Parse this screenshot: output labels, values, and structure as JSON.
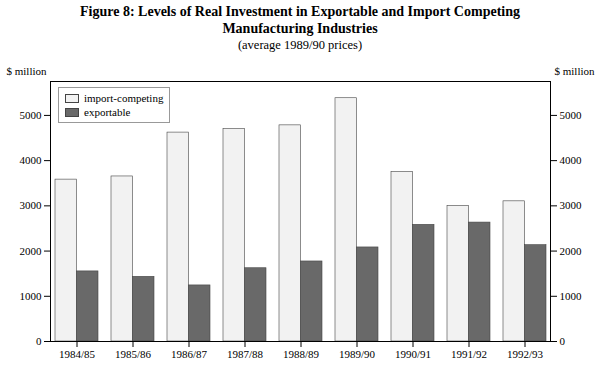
{
  "chart_data": {
    "type": "bar",
    "title": "Figure 8: Levels of Real Investment in Exportable and Import Competing\nManufacturing Industries",
    "subtitle": "(average 1989/90 prices)",
    "categories": [
      "1984/85",
      "1985/86",
      "1986/87",
      "1987/88",
      "1988/89",
      "1989/90",
      "1990/91",
      "1991/92",
      "1992/93"
    ],
    "series": [
      {
        "name": "import-competing",
        "color": "#f2f2f2",
        "values": [
          3580,
          3650,
          4620,
          4700,
          4780,
          5380,
          3750,
          3000,
          3100
        ]
      },
      {
        "name": "exportable",
        "color": "#696969",
        "values": [
          1550,
          1430,
          1240,
          1620,
          1770,
          2080,
          2580,
          2630,
          2130
        ]
      }
    ],
    "ylim": [
      0,
      5750
    ],
    "yticks": [
      0,
      1000,
      2000,
      3000,
      4000,
      5000
    ],
    "ylabel": "$ million",
    "y2lim": [
      0,
      5750
    ],
    "y2ticks": [
      0,
      1000,
      2000,
      3000,
      4000,
      5000
    ],
    "y2label": "$ million",
    "legend": "upper left",
    "grid": false
  }
}
